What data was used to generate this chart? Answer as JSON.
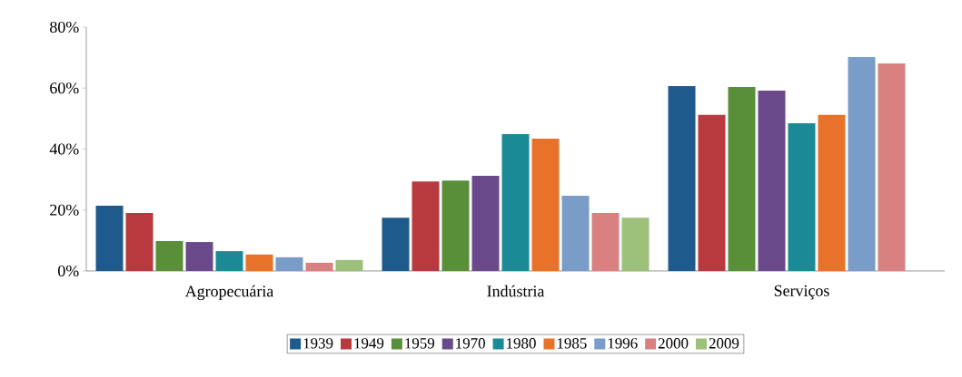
{
  "chart_data": {
    "type": "bar",
    "categories": [
      "Agropecuária",
      "Indústria",
      "Serviços"
    ],
    "series": [
      {
        "name": "1939",
        "color": "#1f5a8c",
        "values": [
          21.4,
          17.5,
          60.7
        ]
      },
      {
        "name": "1949",
        "color": "#b83a3e",
        "values": [
          19.0,
          29.4,
          51.2
        ]
      },
      {
        "name": "1959",
        "color": "#5a8f3a",
        "values": [
          9.8,
          29.7,
          60.4
        ]
      },
      {
        "name": "1970",
        "color": "#6a4a8a",
        "values": [
          9.5,
          31.2,
          59.2
        ]
      },
      {
        "name": "1980",
        "color": "#1a8b96",
        "values": [
          6.5,
          44.9,
          48.5
        ]
      },
      {
        "name": "1985",
        "color": "#e8722a",
        "values": [
          5.4,
          43.4,
          51.2
        ]
      },
      {
        "name": "1996",
        "color": "#7a9cc8",
        "values": [
          4.5,
          24.7,
          70.2
        ]
      },
      {
        "name": "2000",
        "color": "#d98080",
        "values": [
          2.7,
          19.0,
          68.1
        ]
      },
      {
        "name": "2009",
        "color": "#9dc07a",
        "values": [
          3.6,
          17.5,
          null
        ]
      }
    ],
    "ylim": [
      0,
      80
    ],
    "yticks": [
      {
        "value": 0,
        "label": "0%"
      },
      {
        "value": 20,
        "label": "20%"
      },
      {
        "value": 40,
        "label": "40%"
      },
      {
        "value": 60,
        "label": "60%"
      },
      {
        "value": 80,
        "label": "80%"
      }
    ],
    "grid": false,
    "legend": "bottom"
  }
}
